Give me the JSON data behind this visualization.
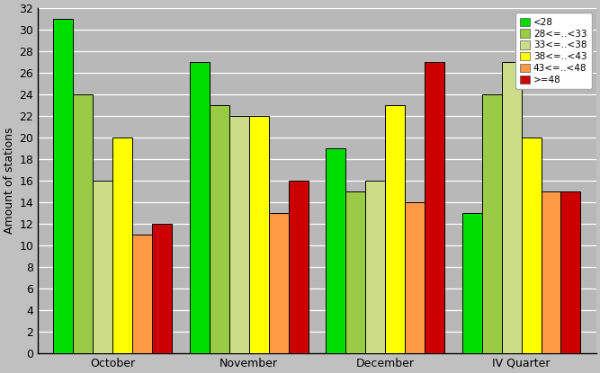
{
  "categories": [
    "October",
    "November",
    "December",
    "IV Quarter"
  ],
  "series": [
    {
      "label": "<28",
      "color": "#00dd00",
      "values": [
        31,
        27,
        19,
        13
      ]
    },
    {
      "label": "28<=..<33",
      "color": "#99cc44",
      "values": [
        24,
        23,
        15,
        24
      ]
    },
    {
      "label": "33<=..<38",
      "color": "#ccdd88",
      "values": [
        16,
        22,
        16,
        27
      ]
    },
    {
      "label": "38<=..<43",
      "color": "#ffff00",
      "values": [
        20,
        22,
        23,
        20
      ]
    },
    {
      "label": "43<=..<48",
      "color": "#ff9944",
      "values": [
        11,
        13,
        14,
        15
      ]
    },
    {
      "label": ">=48",
      "color": "#cc0000",
      "values": [
        12,
        16,
        27,
        15
      ]
    }
  ],
  "ylim": [
    0,
    32
  ],
  "yticks": [
    0,
    2,
    4,
    6,
    8,
    10,
    12,
    14,
    16,
    18,
    20,
    22,
    24,
    26,
    28,
    30,
    32
  ],
  "ylabel": "Amount of stations",
  "background_color": "#c0c0c0",
  "plot_bg_color": "#b8b8b8",
  "grid_color": "#ffffff",
  "bar_edge_color": "#000000",
  "figsize": [
    6.67,
    4.15
  ],
  "dpi": 100
}
